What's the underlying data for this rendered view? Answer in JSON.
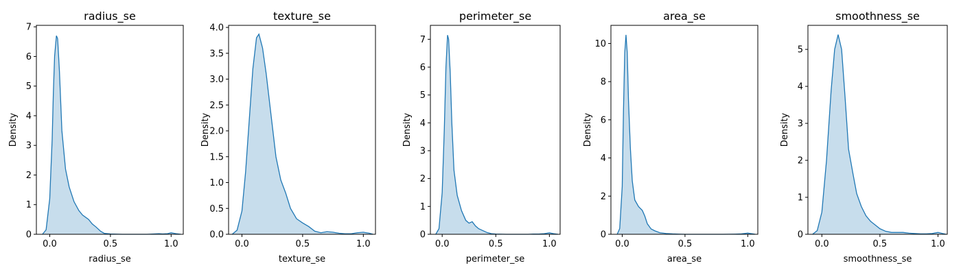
{
  "figure": {
    "colors": {
      "line": "#1f77b4",
      "fill": "#1f77b4",
      "fill_opacity": 0.25,
      "axes": "#000000"
    }
  },
  "chart_data": [
    {
      "type": "area",
      "title": "radius_se",
      "xlabel": "radius_se",
      "ylabel": "Density",
      "xlim": [
        -0.11,
        1.1
      ],
      "ylim": [
        0,
        7.05
      ],
      "xticks": [
        0.0,
        0.5,
        1.0
      ],
      "xtick_labels": [
        "0.0",
        "0.5",
        "1.0"
      ],
      "yticks": [
        0,
        1,
        2,
        3,
        4,
        5,
        6,
        7
      ],
      "ytick_labels": [
        "0",
        "1",
        "2",
        "3",
        "4",
        "5",
        "6",
        "7"
      ],
      "grid": false,
      "series": [
        {
          "x": [
            -0.06,
            -0.03,
            0.0,
            0.02,
            0.03,
            0.04,
            0.055,
            0.065,
            0.08,
            0.1,
            0.13,
            0.16,
            0.2,
            0.24,
            0.27,
            0.32,
            0.35,
            0.38,
            0.42,
            0.45,
            0.5,
            0.6,
            0.7,
            0.8,
            0.86,
            0.9,
            0.93,
            0.97,
            1.0,
            1.04,
            1.08
          ],
          "y": [
            0.0,
            0.15,
            1.2,
            3.2,
            4.8,
            6.0,
            6.7,
            6.6,
            5.5,
            3.5,
            2.2,
            1.6,
            1.1,
            0.8,
            0.65,
            0.5,
            0.35,
            0.25,
            0.1,
            0.03,
            0.01,
            0.0,
            0.0,
            0.0,
            0.01,
            0.02,
            0.01,
            0.02,
            0.05,
            0.02,
            0.0
          ]
        }
      ]
    },
    {
      "type": "area",
      "title": "texture_se",
      "xlabel": "texture_se",
      "ylabel": "Density",
      "xlim": [
        -0.11,
        1.1
      ],
      "ylim": [
        0,
        4.04
      ],
      "xticks": [
        0.0,
        0.5,
        1.0
      ],
      "xtick_labels": [
        "0.0",
        "0.5",
        "1.0"
      ],
      "yticks": [
        0.0,
        0.5,
        1.0,
        1.5,
        2.0,
        2.5,
        3.0,
        3.5,
        4.0
      ],
      "ytick_labels": [
        "0.0",
        "0.5",
        "1.0",
        "1.5",
        "2.0",
        "2.5",
        "3.0",
        "3.5",
        "4.0"
      ],
      "grid": false,
      "series": [
        {
          "x": [
            -0.08,
            -0.04,
            0.0,
            0.03,
            0.06,
            0.09,
            0.12,
            0.14,
            0.17,
            0.2,
            0.24,
            0.28,
            0.32,
            0.36,
            0.4,
            0.45,
            0.5,
            0.55,
            0.6,
            0.65,
            0.7,
            0.75,
            0.8,
            0.85,
            0.9,
            0.95,
            1.0,
            1.05,
            1.08
          ],
          "y": [
            0.0,
            0.08,
            0.45,
            1.2,
            2.2,
            3.2,
            3.8,
            3.87,
            3.6,
            3.1,
            2.3,
            1.5,
            1.05,
            0.8,
            0.5,
            0.3,
            0.22,
            0.15,
            0.06,
            0.03,
            0.05,
            0.04,
            0.02,
            0.01,
            0.01,
            0.03,
            0.04,
            0.02,
            0.0
          ]
        }
      ]
    },
    {
      "type": "area",
      "title": "perimeter_se",
      "xlabel": "perimeter_se",
      "ylabel": "Density",
      "xlim": [
        -0.11,
        1.1
      ],
      "ylim": [
        0,
        7.5
      ],
      "xticks": [
        0.0,
        0.5,
        1.0
      ],
      "xtick_labels": [
        "0.0",
        "0.5",
        "1.0"
      ],
      "yticks": [
        0,
        1,
        2,
        3,
        4,
        5,
        6,
        7
      ],
      "ytick_labels": [
        "0",
        "1",
        "2",
        "3",
        "4",
        "5",
        "6",
        "7"
      ],
      "grid": false,
      "series": [
        {
          "x": [
            -0.06,
            -0.03,
            0.0,
            0.02,
            0.035,
            0.05,
            0.06,
            0.075,
            0.09,
            0.11,
            0.14,
            0.18,
            0.22,
            0.25,
            0.28,
            0.31,
            0.34,
            0.38,
            0.42,
            0.46,
            0.5,
            0.6,
            0.7,
            0.8,
            0.85,
            0.9,
            0.95,
            1.0,
            1.04,
            1.08
          ],
          "y": [
            0.0,
            0.2,
            1.5,
            3.8,
            6.0,
            7.15,
            7.0,
            5.8,
            4.0,
            2.3,
            1.4,
            0.85,
            0.5,
            0.4,
            0.45,
            0.3,
            0.2,
            0.13,
            0.06,
            0.02,
            0.01,
            0.0,
            0.0,
            0.0,
            0.01,
            0.01,
            0.02,
            0.05,
            0.02,
            0.0
          ]
        }
      ]
    },
    {
      "type": "area",
      "title": "area_se",
      "xlabel": "area_se",
      "ylabel": "Density",
      "xlim": [
        -0.09,
        1.08
      ],
      "ylim": [
        0,
        10.95
      ],
      "xticks": [
        0.0,
        0.5,
        1.0
      ],
      "xtick_labels": [
        "0.0",
        "0.5",
        "1.0"
      ],
      "yticks": [
        0,
        2,
        4,
        6,
        8,
        10
      ],
      "ytick_labels": [
        "0",
        "2",
        "4",
        "6",
        "8",
        "10"
      ],
      "grid": false,
      "series": [
        {
          "x": [
            -0.04,
            -0.02,
            0.0,
            0.01,
            0.02,
            0.03,
            0.04,
            0.05,
            0.065,
            0.08,
            0.1,
            0.13,
            0.16,
            0.18,
            0.2,
            0.23,
            0.26,
            0.3,
            0.35,
            0.4,
            0.45,
            0.5,
            0.6,
            0.7,
            0.8,
            0.9,
            0.95,
            1.0,
            1.04,
            1.06
          ],
          "y": [
            0.0,
            0.3,
            2.5,
            6.5,
            9.5,
            10.45,
            9.5,
            7.0,
            4.5,
            2.8,
            1.8,
            1.45,
            1.25,
            0.95,
            0.55,
            0.28,
            0.18,
            0.08,
            0.04,
            0.02,
            0.01,
            0.0,
            0.0,
            0.0,
            0.0,
            0.01,
            0.02,
            0.06,
            0.02,
            0.0
          ]
        }
      ]
    },
    {
      "type": "area",
      "title": "smoothness_se",
      "xlabel": "smoothness_se",
      "ylabel": "Density",
      "xlim": [
        -0.12,
        1.08
      ],
      "ylim": [
        0,
        5.65
      ],
      "xticks": [
        0.0,
        0.5,
        1.0
      ],
      "xtick_labels": [
        "0.0",
        "0.5",
        "1.0"
      ],
      "yticks": [
        0,
        1,
        2,
        3,
        4,
        5
      ],
      "ytick_labels": [
        "0",
        "1",
        "2",
        "3",
        "4",
        "5"
      ],
      "grid": false,
      "series": [
        {
          "x": [
            -0.08,
            -0.04,
            0.0,
            0.04,
            0.08,
            0.11,
            0.14,
            0.17,
            0.2,
            0.23,
            0.27,
            0.3,
            0.34,
            0.38,
            0.42,
            0.46,
            0.5,
            0.55,
            0.6,
            0.65,
            0.7,
            0.75,
            0.8,
            0.85,
            0.9,
            0.95,
            1.0,
            1.04,
            1.07
          ],
          "y": [
            0.0,
            0.1,
            0.6,
            2.0,
            3.9,
            5.0,
            5.4,
            5.0,
            3.7,
            2.3,
            1.6,
            1.1,
            0.75,
            0.5,
            0.35,
            0.25,
            0.15,
            0.08,
            0.05,
            0.05,
            0.05,
            0.03,
            0.02,
            0.01,
            0.01,
            0.02,
            0.05,
            0.02,
            0.0
          ]
        }
      ]
    }
  ]
}
